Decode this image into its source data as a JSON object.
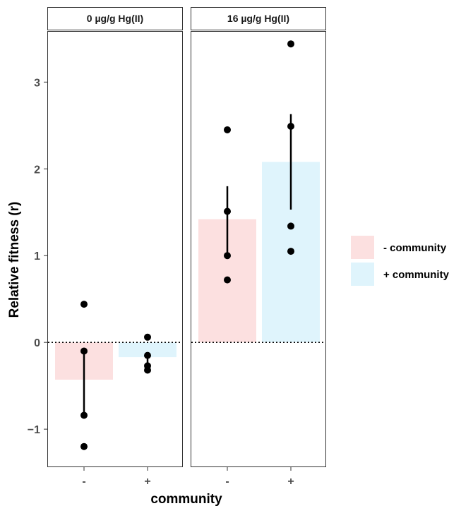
{
  "chart_data": {
    "type": "bar",
    "xlabel": "community",
    "ylabel": "Relative fitness (r)",
    "ylim": [
      -1.43,
      3.58
    ],
    "yticks": [
      -1,
      0,
      1,
      2,
      3
    ],
    "ytick_labels": [
      "−1",
      "0",
      "1",
      "2",
      "3"
    ],
    "categories": [
      "-",
      "+"
    ],
    "legend": {
      "position": "right",
      "entries": [
        {
          "label": "- community",
          "color": "#fce0e0"
        },
        {
          "label": "+ community",
          "color": "#dff4fc"
        }
      ]
    },
    "reference_line": {
      "y": 0,
      "style": "dotted"
    },
    "panels": [
      {
        "title": "0 µg/g Hg(II)",
        "bars": [
          {
            "category": "-",
            "mean": -0.43,
            "error_low": -0.84,
            "error_high": -0.08,
            "points": [
              0.44,
              -0.1,
              -0.84,
              -1.2
            ],
            "color": "#fce0e0"
          },
          {
            "category": "+",
            "mean": -0.17,
            "error_low": -0.28,
            "error_high": -0.12,
            "points": [
              0.06,
              -0.15,
              -0.27,
              -0.32
            ],
            "color": "#dff4fc"
          }
        ]
      },
      {
        "title": "16 µg/g Hg(II)",
        "bars": [
          {
            "category": "-",
            "mean": 1.42,
            "error_low": 1.0,
            "error_high": 1.8,
            "points": [
              2.45,
              1.51,
              1.0,
              0.72
            ],
            "color": "#fce0e0"
          },
          {
            "category": "+",
            "mean": 2.08,
            "error_low": 1.53,
            "error_high": 2.63,
            "points": [
              3.44,
              2.49,
              1.34,
              1.05
            ],
            "color": "#dff4fc"
          }
        ]
      }
    ]
  }
}
